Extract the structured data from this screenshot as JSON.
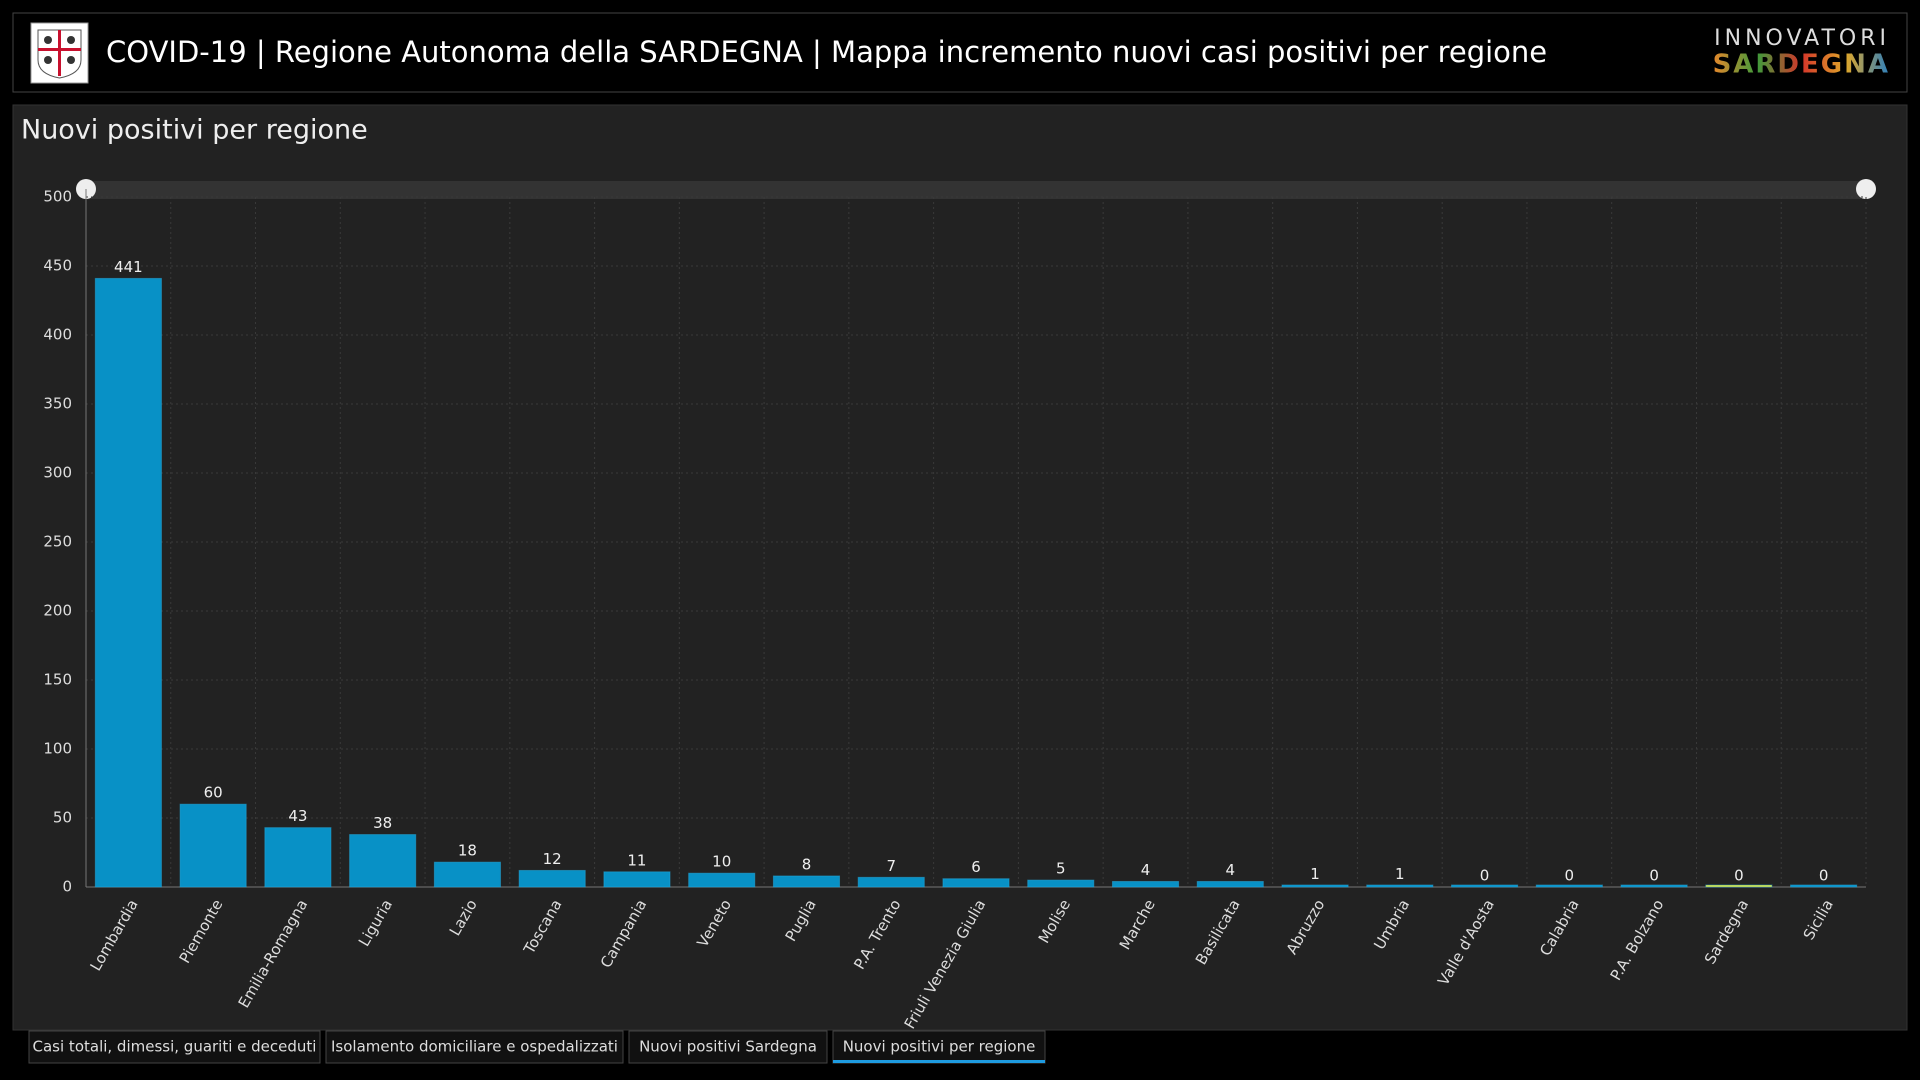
{
  "header": {
    "title": "COVID-19 | Regione Autonoma della SARDEGNA | Mappa incremento nuovi casi positivi per regione",
    "brand_top": "INNOVATORI",
    "brand_bottom": "SARDEGNA"
  },
  "chart_data": {
    "type": "bar",
    "title": "Nuovi positivi per regione",
    "categories": [
      "Lombardia",
      "Piemonte",
      "Emilia-Romagna",
      "Liguria",
      "Lazio",
      "Toscana",
      "Campania",
      "Veneto",
      "Puglia",
      "P.A. Trento",
      "Friuli Venezia Giulia",
      "Molise",
      "Marche",
      "Basilicata",
      "Abruzzo",
      "Umbria",
      "Valle d'Aosta",
      "Calabria",
      "P.A. Bolzano",
      "Sardegna",
      "Sicilia"
    ],
    "values": [
      441,
      60,
      43,
      38,
      18,
      12,
      11,
      10,
      8,
      7,
      6,
      5,
      4,
      4,
      1,
      1,
      0,
      0,
      0,
      0,
      0
    ],
    "colors": [
      "#0891c6",
      "#0891c6",
      "#0891c6",
      "#0891c6",
      "#0891c6",
      "#0891c6",
      "#0891c6",
      "#0891c6",
      "#0891c6",
      "#0891c6",
      "#0891c6",
      "#0891c6",
      "#0891c6",
      "#0891c6",
      "#0891c6",
      "#0891c6",
      "#0891c6",
      "#0891c6",
      "#0891c6",
      "#e8e83a",
      "#0891c6"
    ],
    "ylim": [
      0,
      500
    ],
    "yticks": [
      0,
      50,
      100,
      150,
      200,
      250,
      300,
      350,
      400,
      450,
      500
    ],
    "grid": true
  },
  "tabs": [
    "Casi totali, dimessi, guariti e deceduti",
    "Isolamento domiciliare e ospedalizzati",
    "Nuovi positivi Sardegna",
    "Nuovi positivi per regione"
  ]
}
